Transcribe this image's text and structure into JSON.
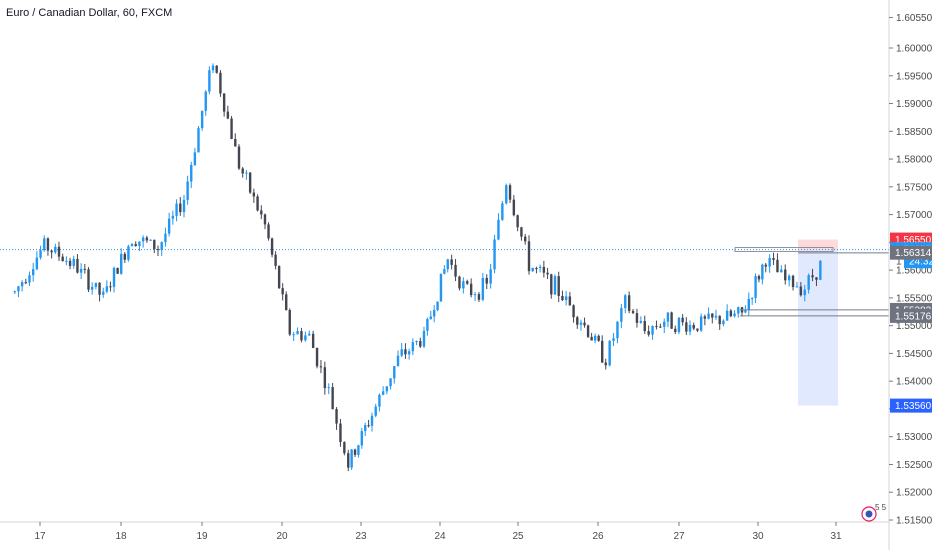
{
  "chart_data": {
    "type": "candlestick",
    "title": "Euro / Canadian Dollar, 60, FXCM",
    "x_tick_labels": [
      "17",
      "18",
      "19",
      "20",
      "23",
      "24",
      "25",
      "26",
      "27",
      "30",
      "31"
    ],
    "y_ticks": [
      "1.60550",
      "1.60000",
      "1.59500",
      "1.59000",
      "1.58500",
      "1.58000",
      "1.57500",
      "1.57000",
      "1.56500",
      "1.56000",
      "1.55500",
      "1.55000",
      "1.54500",
      "1.54000",
      "1.53500",
      "1.53000",
      "1.52500",
      "1.52000",
      "1.51500"
    ],
    "ylim": [
      1.5135,
      1.608
    ],
    "colors": {
      "up": "#2196f3",
      "down": "#434651"
    },
    "anchors": [
      {
        "day": "17",
        "close": 1.556,
        "low": 1.548,
        "high": 1.561
      },
      {
        "day": "17",
        "close": 1.5645,
        "low": 1.559,
        "high": 1.568
      },
      {
        "day": "17",
        "close": 1.561,
        "low": 1.557,
        "high": 1.566
      },
      {
        "day": "17",
        "close": 1.555,
        "low": 1.545,
        "high": 1.563
      },
      {
        "day": "18",
        "close": 1.566,
        "low": 1.553,
        "high": 1.571
      },
      {
        "day": "18",
        "close": 1.564,
        "low": 1.559,
        "high": 1.57
      },
      {
        "day": "18",
        "close": 1.573,
        "low": 1.562,
        "high": 1.58
      },
      {
        "day": "19",
        "close": 1.598,
        "low": 1.57,
        "high": 1.601
      },
      {
        "day": "19",
        "close": 1.579,
        "low": 1.572,
        "high": 1.586
      },
      {
        "day": "19",
        "close": 1.568,
        "low": 1.561,
        "high": 1.574
      },
      {
        "day": "20",
        "close": 1.549,
        "low": 1.545,
        "high": 1.556
      },
      {
        "day": "20",
        "close": 1.548,
        "low": 1.543,
        "high": 1.553
      },
      {
        "day": "20",
        "close": 1.538,
        "low": 1.53,
        "high": 1.544
      },
      {
        "day": "20",
        "close": 1.525,
        "low": 1.522,
        "high": 1.532
      },
      {
        "day": "23",
        "close": 1.534,
        "low": 1.526,
        "high": 1.54
      },
      {
        "day": "23",
        "close": 1.544,
        "low": 1.538,
        "high": 1.55
      },
      {
        "day": "23",
        "close": 1.548,
        "low": 1.543,
        "high": 1.554
      },
      {
        "day": "24",
        "close": 1.562,
        "low": 1.549,
        "high": 1.565
      },
      {
        "day": "24",
        "close": 1.556,
        "low": 1.551,
        "high": 1.561
      },
      {
        "day": "24",
        "close": 1.557,
        "low": 1.553,
        "high": 1.562
      },
      {
        "day": "24",
        "close": 1.576,
        "low": 1.56,
        "high": 1.579
      },
      {
        "day": "25",
        "close": 1.561,
        "low": 1.556,
        "high": 1.566
      },
      {
        "day": "25",
        "close": 1.557,
        "low": 1.553,
        "high": 1.562
      },
      {
        "day": "25",
        "close": 1.551,
        "low": 1.548,
        "high": 1.557
      },
      {
        "day": "26",
        "close": 1.544,
        "low": 1.542,
        "high": 1.549
      },
      {
        "day": "26",
        "close": 1.554,
        "low": 1.546,
        "high": 1.557
      },
      {
        "day": "26",
        "close": 1.549,
        "low": 1.543,
        "high": 1.554
      },
      {
        "day": "26",
        "close": 1.551,
        "low": 1.541,
        "high": 1.556
      },
      {
        "day": "27",
        "close": 1.55,
        "low": 1.546,
        "high": 1.554
      },
      {
        "day": "27",
        "close": 1.551,
        "low": 1.545,
        "high": 1.555
      },
      {
        "day": "27",
        "close": 1.552,
        "low": 1.548,
        "high": 1.555
      },
      {
        "day": "30",
        "close": 1.562,
        "low": 1.55,
        "high": 1.565
      },
      {
        "day": "30",
        "close": 1.558,
        "low": 1.556,
        "high": 1.565
      },
      {
        "day": "30",
        "close": 1.557,
        "low": 1.554,
        "high": 1.561
      },
      {
        "day": "30",
        "close": 1.562,
        "low": 1.558,
        "high": 1.564
      }
    ],
    "horizontal_line": 1.5637,
    "price_labels": [
      {
        "text": "1.56550",
        "value": 1.5655,
        "bg": "#f23645"
      },
      {
        "text": "1.56377",
        "value": 1.56377,
        "bg": "#2196f3"
      },
      {
        "text": "24:32",
        "value": 1.5616,
        "bg": "#2196f3"
      },
      {
        "text": "1.56314",
        "value": 1.56314,
        "bg": "#6f7380"
      },
      {
        "text": "1.55283",
        "value": 1.55283,
        "bg": "#6f7380"
      },
      {
        "text": "1.55176",
        "value": 1.55176,
        "bg": "#6f7380"
      },
      {
        "text": "1.53560",
        "value": 1.5356,
        "bg": "#2962ff"
      }
    ],
    "position_tool": {
      "entry": 1.5637,
      "stop": 1.5655,
      "target": 1.5356
    },
    "level_lines": [
      1.55283,
      1.55176
    ],
    "grid": false
  },
  "ui": {
    "price_prefix": "1",
    "badge_text": "5 5"
  }
}
